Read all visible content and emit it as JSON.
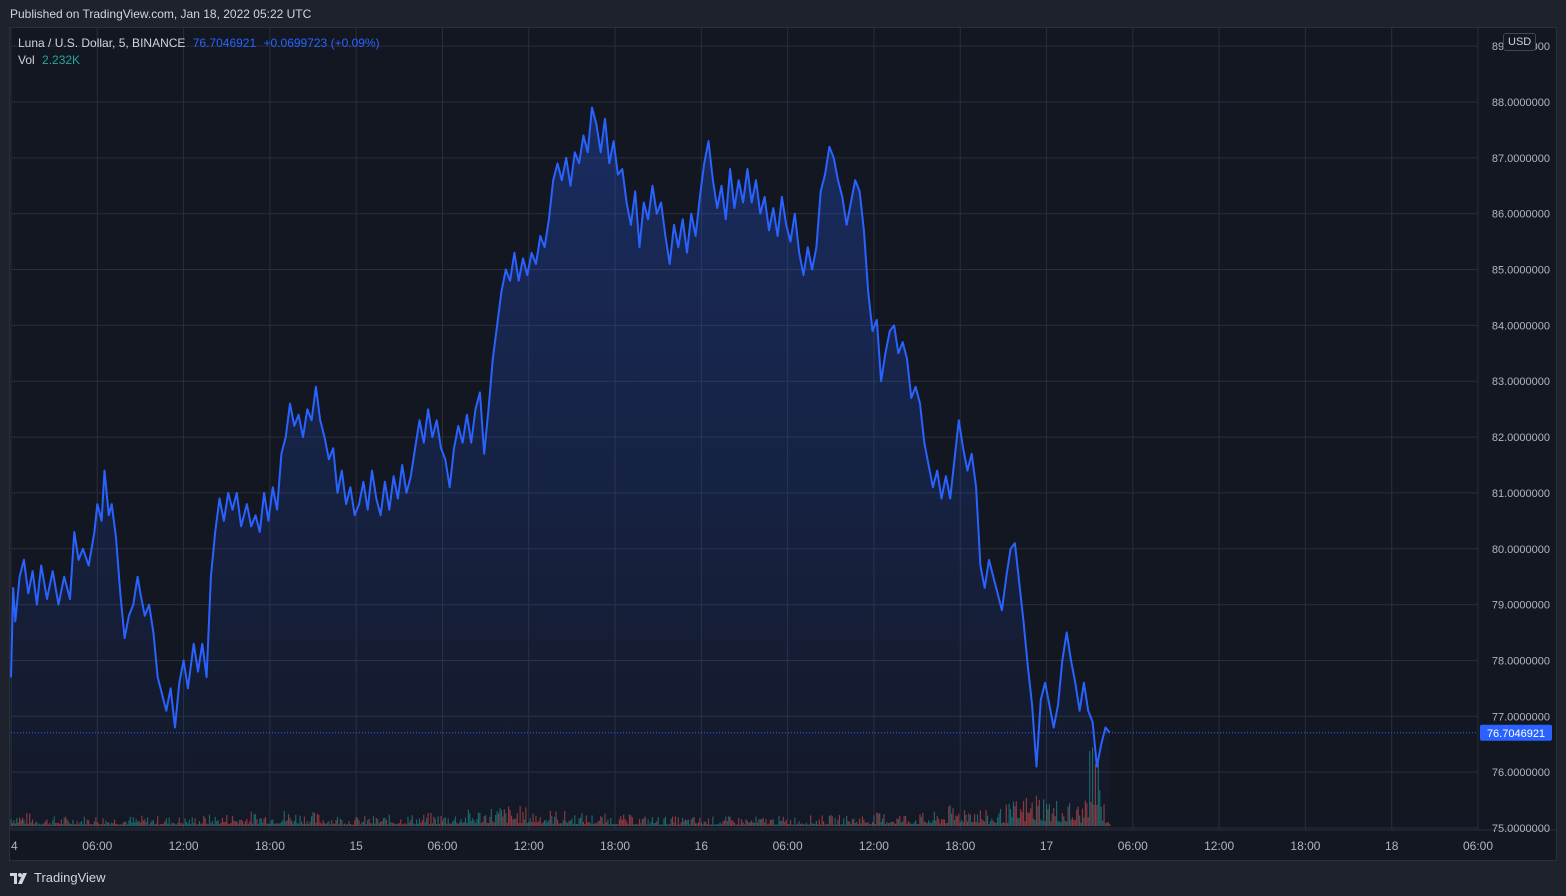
{
  "header": {
    "published_text": "Published on TradingView.com, Jan 18, 2022 05:22 UTC"
  },
  "legend": {
    "symbol": "Luna / U.S. Dollar, 5, BINANCE",
    "last_value": "76.7046921",
    "change": "+0.0699723 (+0.09%)",
    "volume_label": "Vol",
    "volume_value": "2.232K"
  },
  "currency_button": "USD",
  "price_label": "76.7046921",
  "footer": {
    "brand": "TradingView"
  },
  "colors": {
    "background": "#131722",
    "line": "#2962ff",
    "volume_up": "#26a69a",
    "volume_down": "#ef5350",
    "grid": "#2a2e39",
    "text": "#b2b5be"
  },
  "chart_data": {
    "type": "area",
    "symbol": "LUNAUSD",
    "exchange": "BINANCE",
    "interval": "5",
    "last_price": 76.7046921,
    "ylim": [
      75.0,
      89.3
    ],
    "grid": true,
    "y_ticks": [
      "89.0000000",
      "88.0000000",
      "87.0000000",
      "86.0000000",
      "85.0000000",
      "84.0000000",
      "83.0000000",
      "82.0000000",
      "81.0000000",
      "80.0000000",
      "79.0000000",
      "78.0000000",
      "77.0000000",
      "76.0000000",
      "75.0000000"
    ],
    "x_ticks": [
      "4",
      "06:00",
      "12:00",
      "18:00",
      "15",
      "06:00",
      "12:00",
      "18:00",
      "16",
      "06:00",
      "12:00",
      "18:00",
      "17",
      "06:00",
      "12:00",
      "18:00",
      "18",
      "06:00"
    ],
    "x_tick_hours": [
      0,
      6,
      12,
      18,
      24,
      30,
      36,
      42,
      48,
      54,
      60,
      66,
      72,
      78,
      84,
      90,
      96,
      102
    ],
    "x_range_hours": [
      0,
      102
    ],
    "series": [
      {
        "points": [
          [
            0.0,
            77.7
          ],
          [
            0.15,
            79.3
          ],
          [
            0.3,
            78.7
          ],
          [
            0.6,
            79.5
          ],
          [
            0.9,
            79.8
          ],
          [
            1.2,
            79.2
          ],
          [
            1.5,
            79.6
          ],
          [
            1.8,
            79.0
          ],
          [
            2.1,
            79.7
          ],
          [
            2.5,
            79.1
          ],
          [
            2.9,
            79.6
          ],
          [
            3.3,
            79.0
          ],
          [
            3.7,
            79.5
          ],
          [
            4.1,
            79.1
          ],
          [
            4.4,
            80.3
          ],
          [
            4.7,
            79.8
          ],
          [
            5.0,
            80.0
          ],
          [
            5.4,
            79.7
          ],
          [
            5.8,
            80.3
          ],
          [
            6.0,
            80.8
          ],
          [
            6.3,
            80.5
          ],
          [
            6.5,
            81.4
          ],
          [
            6.8,
            80.6
          ],
          [
            7.0,
            80.8
          ],
          [
            7.3,
            80.2
          ],
          [
            7.6,
            79.2
          ],
          [
            7.9,
            78.4
          ],
          [
            8.2,
            78.8
          ],
          [
            8.5,
            79.0
          ],
          [
            8.8,
            79.5
          ],
          [
            9.0,
            79.2
          ],
          [
            9.3,
            78.8
          ],
          [
            9.6,
            79.0
          ],
          [
            9.9,
            78.5
          ],
          [
            10.2,
            77.7
          ],
          [
            10.5,
            77.4
          ],
          [
            10.8,
            77.1
          ],
          [
            11.1,
            77.5
          ],
          [
            11.4,
            76.8
          ],
          [
            11.7,
            77.6
          ],
          [
            12.0,
            78.0
          ],
          [
            12.3,
            77.5
          ],
          [
            12.7,
            78.3
          ],
          [
            13.0,
            77.8
          ],
          [
            13.3,
            78.3
          ],
          [
            13.6,
            77.7
          ],
          [
            13.9,
            79.5
          ],
          [
            14.2,
            80.3
          ],
          [
            14.5,
            80.9
          ],
          [
            14.8,
            80.5
          ],
          [
            15.1,
            81.0
          ],
          [
            15.4,
            80.7
          ],
          [
            15.7,
            81.0
          ],
          [
            16.0,
            80.4
          ],
          [
            16.4,
            80.8
          ],
          [
            16.7,
            80.4
          ],
          [
            17.0,
            80.6
          ],
          [
            17.3,
            80.3
          ],
          [
            17.6,
            81.0
          ],
          [
            17.9,
            80.5
          ],
          [
            18.2,
            81.1
          ],
          [
            18.5,
            80.7
          ],
          [
            18.8,
            81.7
          ],
          [
            19.1,
            82.0
          ],
          [
            19.4,
            82.6
          ],
          [
            19.7,
            82.2
          ],
          [
            20.0,
            82.4
          ],
          [
            20.3,
            82.0
          ],
          [
            20.6,
            82.5
          ],
          [
            20.9,
            82.3
          ],
          [
            21.2,
            82.9
          ],
          [
            21.5,
            82.3
          ],
          [
            21.8,
            82.0
          ],
          [
            22.1,
            81.6
          ],
          [
            22.4,
            81.8
          ],
          [
            22.7,
            81.0
          ],
          [
            23.0,
            81.4
          ],
          [
            23.3,
            80.8
          ],
          [
            23.6,
            81.1
          ],
          [
            23.9,
            80.6
          ],
          [
            24.2,
            80.8
          ],
          [
            24.5,
            81.2
          ],
          [
            24.8,
            80.7
          ],
          [
            25.1,
            81.4
          ],
          [
            25.4,
            80.9
          ],
          [
            25.7,
            80.6
          ],
          [
            26.0,
            81.2
          ],
          [
            26.3,
            80.7
          ],
          [
            26.6,
            81.3
          ],
          [
            26.9,
            80.9
          ],
          [
            27.2,
            81.5
          ],
          [
            27.5,
            81.0
          ],
          [
            27.8,
            81.3
          ],
          [
            28.1,
            81.8
          ],
          [
            28.4,
            82.3
          ],
          [
            28.7,
            81.9
          ],
          [
            29.0,
            82.5
          ],
          [
            29.3,
            82.0
          ],
          [
            29.6,
            82.3
          ],
          [
            29.9,
            81.8
          ],
          [
            30.2,
            81.6
          ],
          [
            30.5,
            81.1
          ],
          [
            30.8,
            81.8
          ],
          [
            31.1,
            82.2
          ],
          [
            31.4,
            81.9
          ],
          [
            31.7,
            82.4
          ],
          [
            32.0,
            81.9
          ],
          [
            32.3,
            82.5
          ],
          [
            32.6,
            82.8
          ],
          [
            32.9,
            81.7
          ],
          [
            33.2,
            82.5
          ],
          [
            33.5,
            83.4
          ],
          [
            33.8,
            84.0
          ],
          [
            34.1,
            84.6
          ],
          [
            34.4,
            85.0
          ],
          [
            34.7,
            84.8
          ],
          [
            35.0,
            85.3
          ],
          [
            35.3,
            84.8
          ],
          [
            35.6,
            85.2
          ],
          [
            35.9,
            84.9
          ],
          [
            36.2,
            85.3
          ],
          [
            36.5,
            85.1
          ],
          [
            36.8,
            85.6
          ],
          [
            37.1,
            85.4
          ],
          [
            37.4,
            85.9
          ],
          [
            37.7,
            86.6
          ],
          [
            38.0,
            86.9
          ],
          [
            38.3,
            86.6
          ],
          [
            38.6,
            87.0
          ],
          [
            38.9,
            86.5
          ],
          [
            39.2,
            87.1
          ],
          [
            39.5,
            86.9
          ],
          [
            39.8,
            87.4
          ],
          [
            40.1,
            87.1
          ],
          [
            40.4,
            87.9
          ],
          [
            40.7,
            87.6
          ],
          [
            41.0,
            87.1
          ],
          [
            41.3,
            87.7
          ],
          [
            41.6,
            86.9
          ],
          [
            41.9,
            87.3
          ],
          [
            42.2,
            86.7
          ],
          [
            42.5,
            86.8
          ],
          [
            42.8,
            86.2
          ],
          [
            43.1,
            85.8
          ],
          [
            43.4,
            86.4
          ],
          [
            43.7,
            85.4
          ],
          [
            44.0,
            86.2
          ],
          [
            44.3,
            85.9
          ],
          [
            44.6,
            86.5
          ],
          [
            44.9,
            86.0
          ],
          [
            45.2,
            86.2
          ],
          [
            45.5,
            85.6
          ],
          [
            45.8,
            85.1
          ],
          [
            46.1,
            85.8
          ],
          [
            46.4,
            85.4
          ],
          [
            46.7,
            85.9
          ],
          [
            47.0,
            85.3
          ],
          [
            47.3,
            86.0
          ],
          [
            47.6,
            85.6
          ],
          [
            47.9,
            86.3
          ],
          [
            48.2,
            86.9
          ],
          [
            48.5,
            87.3
          ],
          [
            48.8,
            86.6
          ],
          [
            49.1,
            86.1
          ],
          [
            49.4,
            86.5
          ],
          [
            49.7,
            85.9
          ],
          [
            50.0,
            86.8
          ],
          [
            50.3,
            86.1
          ],
          [
            50.6,
            86.6
          ],
          [
            50.9,
            86.2
          ],
          [
            51.2,
            86.8
          ],
          [
            51.5,
            86.2
          ],
          [
            51.8,
            86.6
          ],
          [
            52.1,
            86.0
          ],
          [
            52.4,
            86.3
          ],
          [
            52.7,
            85.7
          ],
          [
            53.0,
            86.1
          ],
          [
            53.3,
            85.6
          ],
          [
            53.6,
            86.3
          ],
          [
            53.9,
            85.8
          ],
          [
            54.2,
            85.5
          ],
          [
            54.5,
            86.0
          ],
          [
            54.8,
            85.3
          ],
          [
            55.1,
            84.9
          ],
          [
            55.4,
            85.4
          ],
          [
            55.7,
            85.0
          ],
          [
            56.0,
            85.4
          ],
          [
            56.3,
            86.4
          ],
          [
            56.6,
            86.7
          ],
          [
            56.9,
            87.2
          ],
          [
            57.2,
            87.0
          ],
          [
            57.5,
            86.6
          ],
          [
            57.8,
            86.3
          ],
          [
            58.1,
            85.8
          ],
          [
            58.4,
            86.2
          ],
          [
            58.7,
            86.6
          ],
          [
            59.0,
            86.4
          ],
          [
            59.3,
            85.7
          ],
          [
            59.6,
            84.6
          ],
          [
            59.9,
            83.9
          ],
          [
            60.2,
            84.1
          ],
          [
            60.5,
            83.0
          ],
          [
            60.8,
            83.5
          ],
          [
            61.1,
            83.9
          ],
          [
            61.4,
            84.0
          ],
          [
            61.7,
            83.5
          ],
          [
            62.0,
            83.7
          ],
          [
            62.3,
            83.4
          ],
          [
            62.6,
            82.7
          ],
          [
            62.9,
            82.9
          ],
          [
            63.2,
            82.6
          ],
          [
            63.5,
            81.9
          ],
          [
            63.8,
            81.5
          ],
          [
            64.1,
            81.1
          ],
          [
            64.4,
            81.4
          ],
          [
            64.7,
            80.9
          ],
          [
            65.0,
            81.3
          ],
          [
            65.3,
            80.9
          ],
          [
            65.6,
            81.6
          ],
          [
            65.9,
            82.3
          ],
          [
            66.2,
            81.8
          ],
          [
            66.5,
            81.4
          ],
          [
            66.8,
            81.7
          ],
          [
            67.1,
            81.1
          ],
          [
            67.4,
            79.7
          ],
          [
            67.7,
            79.3
          ],
          [
            68.0,
            79.8
          ],
          [
            68.3,
            79.5
          ],
          [
            68.6,
            79.2
          ],
          [
            68.9,
            78.9
          ],
          [
            69.2,
            79.5
          ],
          [
            69.5,
            80.0
          ],
          [
            69.8,
            80.1
          ],
          [
            70.1,
            79.4
          ],
          [
            70.4,
            78.7
          ],
          [
            70.7,
            77.9
          ],
          [
            71.0,
            77.2
          ],
          [
            71.3,
            76.1
          ],
          [
            71.6,
            77.3
          ],
          [
            71.9,
            77.6
          ],
          [
            72.2,
            77.2
          ],
          [
            72.5,
            76.8
          ],
          [
            72.8,
            77.2
          ],
          [
            73.1,
            78.0
          ],
          [
            73.4,
            78.5
          ],
          [
            73.7,
            78.0
          ],
          [
            74.0,
            77.6
          ],
          [
            74.3,
            77.1
          ],
          [
            74.6,
            77.6
          ],
          [
            74.9,
            77.1
          ],
          [
            75.2,
            76.9
          ],
          [
            75.5,
            76.1
          ],
          [
            75.8,
            76.5
          ],
          [
            76.1,
            76.8
          ],
          [
            76.4,
            76.7046921
          ]
        ]
      }
    ],
    "volume": [
      {
        "x": 0.0,
        "v": 0.6
      },
      {
        "x": 2.0,
        "v": 0.3
      },
      {
        "x": 6.0,
        "v": 0.35
      },
      {
        "x": 12.0,
        "v": 0.3
      },
      {
        "x": 19.0,
        "v": 0.55
      },
      {
        "x": 24.0,
        "v": 0.3
      },
      {
        "x": 31.0,
        "v": 0.45
      },
      {
        "x": 34.0,
        "v": 0.7
      },
      {
        "x": 40.0,
        "v": 0.4
      },
      {
        "x": 46.0,
        "v": 0.3
      },
      {
        "x": 52.0,
        "v": 0.3
      },
      {
        "x": 58.0,
        "v": 0.35
      },
      {
        "x": 61.0,
        "v": 0.45
      },
      {
        "x": 64.0,
        "v": 0.4
      },
      {
        "x": 66.7,
        "v": 0.9
      },
      {
        "x": 68.0,
        "v": 0.4
      },
      {
        "x": 71.5,
        "v": 1.2
      },
      {
        "x": 72.5,
        "v": 0.9
      },
      {
        "x": 74.5,
        "v": 0.7
      },
      {
        "x": 75.4,
        "v": 3.5
      },
      {
        "x": 75.8,
        "v": 1.3
      },
      {
        "x": 76.2,
        "v": 0.4
      }
    ]
  }
}
